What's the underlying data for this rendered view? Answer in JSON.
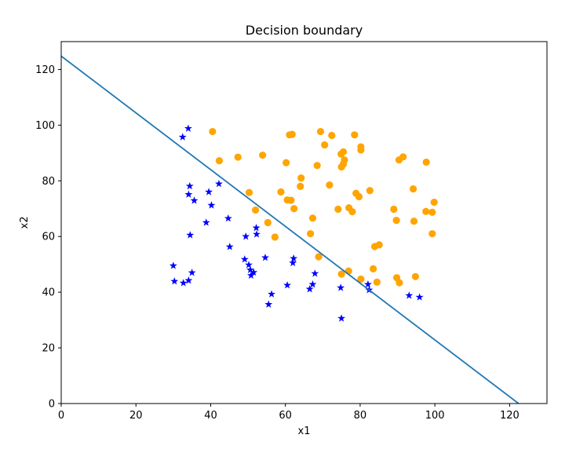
{
  "chart_data": {
    "type": "scatter",
    "title": "Decision boundary",
    "xlabel": "x1",
    "ylabel": "x2",
    "xlim": [
      0,
      130
    ],
    "ylim": [
      0,
      130
    ],
    "xticks": [
      0,
      20,
      40,
      60,
      80,
      100,
      120
    ],
    "yticks": [
      0,
      20,
      40,
      60,
      80,
      100,
      120
    ],
    "grid": false,
    "series": [
      {
        "marker": "star",
        "color": "#0000ff",
        "points": [
          [
            34.0,
            98.8
          ],
          [
            32.5,
            95.7
          ],
          [
            42.2,
            78.9
          ],
          [
            34.4,
            78.1
          ],
          [
            39.5,
            76.0
          ],
          [
            34.1,
            75.1
          ],
          [
            35.6,
            72.9
          ],
          [
            40.2,
            71.2
          ],
          [
            44.7,
            66.5
          ],
          [
            38.8,
            65.0
          ],
          [
            52.2,
            63.1
          ],
          [
            34.5,
            60.5
          ],
          [
            49.4,
            60.0
          ],
          [
            52.3,
            60.8
          ],
          [
            45.1,
            56.3
          ],
          [
            54.6,
            52.4
          ],
          [
            49.1,
            51.8
          ],
          [
            62.2,
            52.1
          ],
          [
            62.0,
            50.5
          ],
          [
            30.0,
            49.5
          ],
          [
            50.2,
            49.8
          ],
          [
            50.6,
            48.0
          ],
          [
            51.5,
            47.1
          ],
          [
            35.0,
            47.0
          ],
          [
            67.9,
            46.7
          ],
          [
            50.8,
            46.0
          ],
          [
            30.3,
            43.9
          ],
          [
            34.1,
            44.2
          ],
          [
            32.7,
            43.3
          ],
          [
            60.5,
            42.5
          ],
          [
            67.3,
            42.8
          ],
          [
            66.5,
            41.1
          ],
          [
            74.8,
            41.6
          ],
          [
            82.1,
            42.8
          ],
          [
            82.4,
            40.8
          ],
          [
            56.3,
            39.3
          ],
          [
            93.1,
            38.8
          ],
          [
            95.9,
            38.2
          ],
          [
            55.5,
            35.6
          ],
          [
            75.0,
            30.6
          ]
        ]
      },
      {
        "marker": "circle",
        "color": "#ffa500",
        "points": [
          [
            40.5,
            97.7
          ],
          [
            69.4,
            97.7
          ],
          [
            61.1,
            96.5
          ],
          [
            61.8,
            96.7
          ],
          [
            72.4,
            96.3
          ],
          [
            78.5,
            96.5
          ],
          [
            70.5,
            92.9
          ],
          [
            80.2,
            92.2
          ],
          [
            80.2,
            91.1
          ],
          [
            75.5,
            90.4
          ],
          [
            74.9,
            89.6
          ],
          [
            53.9,
            89.2
          ],
          [
            47.3,
            88.5
          ],
          [
            91.5,
            88.6
          ],
          [
            90.4,
            87.5
          ],
          [
            42.3,
            87.2
          ],
          [
            75.8,
            87.5
          ],
          [
            97.7,
            86.7
          ],
          [
            60.2,
            86.5
          ],
          [
            68.5,
            85.5
          ],
          [
            75.0,
            85.0
          ],
          [
            75.5,
            86.0
          ],
          [
            64.2,
            81.0
          ],
          [
            71.8,
            78.5
          ],
          [
            64.0,
            78.0
          ],
          [
            94.2,
            77.1
          ],
          [
            82.6,
            76.5
          ],
          [
            58.8,
            76.0
          ],
          [
            50.3,
            75.8
          ],
          [
            78.9,
            75.5
          ],
          [
            79.7,
            74.3
          ],
          [
            60.5,
            73.1
          ],
          [
            61.5,
            73.0
          ],
          [
            99.8,
            72.3
          ],
          [
            62.3,
            70.0
          ],
          [
            52.0,
            69.5
          ],
          [
            74.1,
            69.8
          ],
          [
            77.0,
            70.3
          ],
          [
            89.0,
            69.8
          ],
          [
            97.6,
            69.0
          ],
          [
            99.3,
            68.7
          ],
          [
            77.9,
            68.9
          ],
          [
            67.3,
            66.6
          ],
          [
            89.7,
            65.8
          ],
          [
            94.4,
            65.5
          ],
          [
            55.3,
            65.0
          ],
          [
            66.7,
            61.0
          ],
          [
            99.3,
            61.0
          ],
          [
            57.2,
            59.8
          ],
          [
            85.1,
            57.0
          ],
          [
            83.9,
            56.4
          ],
          [
            68.9,
            52.7
          ],
          [
            76.9,
            47.6
          ],
          [
            83.5,
            48.4
          ],
          [
            75.0,
            46.5
          ],
          [
            94.8,
            45.6
          ],
          [
            89.8,
            45.2
          ],
          [
            80.2,
            44.7
          ],
          [
            84.5,
            43.6
          ],
          [
            90.5,
            43.4
          ]
        ]
      }
    ],
    "boundary": {
      "color": "#1f77b4",
      "x": [
        0,
        122.4
      ],
      "y": [
        124.8,
        0
      ]
    }
  }
}
